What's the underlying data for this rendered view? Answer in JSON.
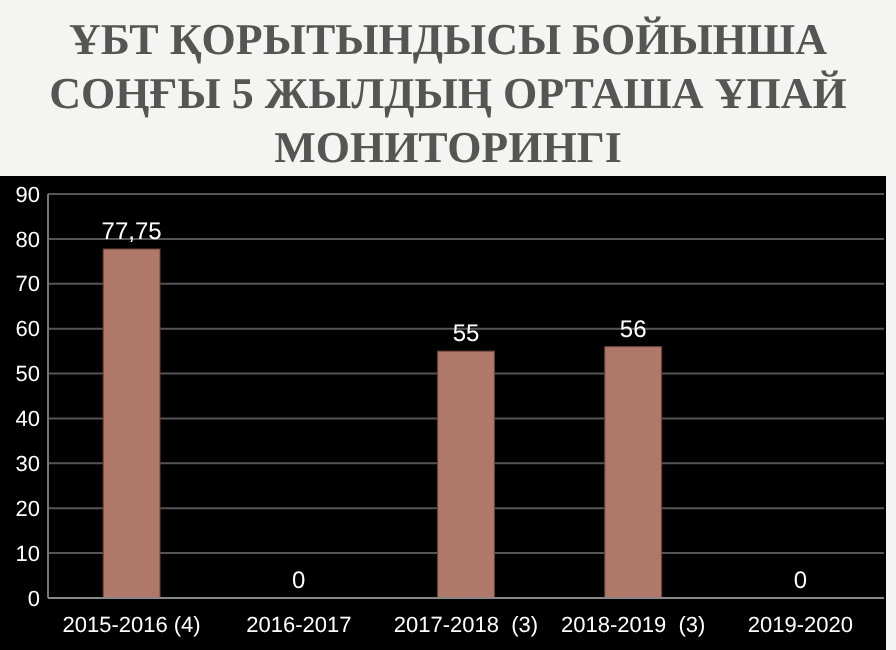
{
  "chart_data": {
    "type": "bar",
    "title": "ҰБТ ҚОРЫТЫНДЫСЫ БОЙЫНША СОҢҒЫ 5 ЖЫЛДЫҢ ОРТАША ҰПАЙ МОНИТОРИНГІ",
    "categories": [
      "2015-2016 (4)",
      "2016-2017",
      "2017-2018  (3)",
      "2018-2019  (3)",
      "2019-2020"
    ],
    "values": [
      77.75,
      0,
      55,
      56,
      0
    ],
    "value_labels": [
      "77,75",
      "0",
      "55",
      "56",
      "0"
    ],
    "color": "#b07868",
    "ylim": [
      0,
      90
    ],
    "yticks": [
      0,
      10,
      20,
      30,
      40,
      50,
      60,
      70,
      80,
      90
    ],
    "grid": "y"
  }
}
